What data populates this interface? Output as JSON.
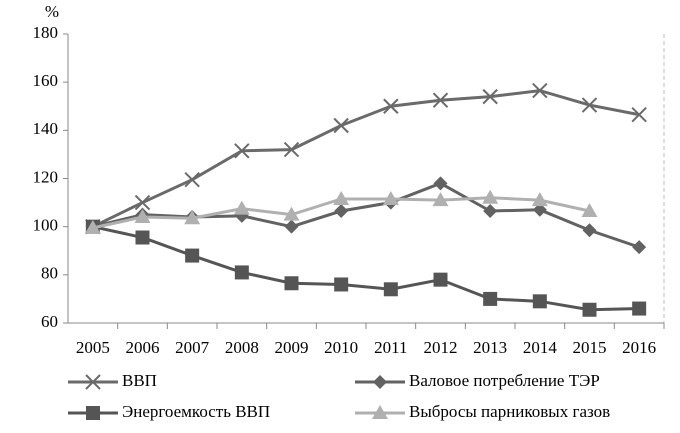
{
  "chart_data": {
    "type": "line",
    "y_label": "%",
    "categories": [
      "2005",
      "2006",
      "2007",
      "2008",
      "2009",
      "2010",
      "2011",
      "2012",
      "2013",
      "2014",
      "2015",
      "2016"
    ],
    "series": [
      {
        "name": "ВВП",
        "color": "#6a6a6a",
        "marker": "x",
        "values": [
          100,
          110,
          119.5,
          131.5,
          132,
          142,
          150,
          152.5,
          154,
          156.5,
          150.5,
          146.5
        ]
      },
      {
        "name": "Валовое потребление ТЭР",
        "color": "#626262",
        "marker": "diamond",
        "values": [
          100,
          105,
          104,
          104.5,
          100,
          106.5,
          110,
          118,
          106.5,
          107,
          98.5,
          91.5
        ]
      },
      {
        "name": "Энергоемкость ВВП",
        "color": "#555555",
        "marker": "square",
        "values": [
          100,
          95.5,
          88,
          81,
          76.5,
          76,
          74,
          78,
          70,
          69,
          65.5,
          66
        ]
      },
      {
        "name": "Выбросы парниковых газов",
        "color": "#b0b0b0",
        "marker": "triangle",
        "values": [
          99.5,
          104,
          103.5,
          107.5,
          105,
          111.5,
          111.5,
          111,
          112,
          111,
          106.5,
          null
        ]
      }
    ],
    "ylim": [
      60,
      180
    ],
    "yticks": [
      60,
      80,
      100,
      120,
      140,
      160,
      180
    ],
    "grid": false,
    "legend": "bottom"
  }
}
